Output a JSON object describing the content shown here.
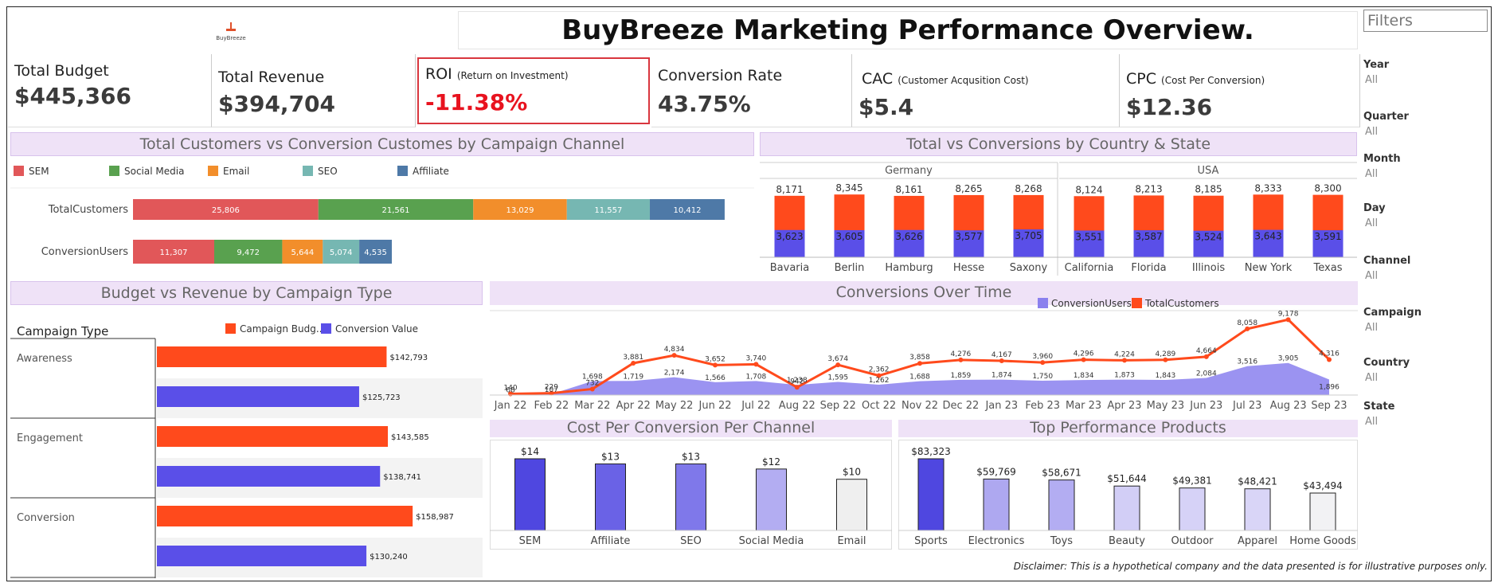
{
  "header": {
    "logo_text": "BuyBreeze",
    "title": "BuyBreeze Marketing Performance Overview."
  },
  "kpis": [
    {
      "label": "Total Budget",
      "sub": "",
      "value": "$445,366"
    },
    {
      "label": "Total Revenue",
      "sub": "",
      "value": "$394,704"
    },
    {
      "label": "ROI",
      "sub": "(Return on Investment)",
      "value": "-11.38%"
    },
    {
      "label": "Conversion Rate",
      "sub": "",
      "value": "43.75%"
    },
    {
      "label": "CAC",
      "sub": "(Customer Acqusition Cost)",
      "value": "$5.4"
    },
    {
      "label": "CPC",
      "sub": "(Cost Per Conversion)",
      "value": "$12.36"
    }
  ],
  "colors": {
    "roi_negative": "#e8131f",
    "title_bg": "#efe2f7",
    "accent_purple": "#d8c2ec"
  },
  "filters": {
    "title": "Filters",
    "items": [
      {
        "label": "Year",
        "value": "All"
      },
      {
        "label": "Quarter",
        "value": "All"
      },
      {
        "label": "Month",
        "value": "All"
      },
      {
        "label": "Day",
        "value": "All"
      },
      {
        "label": "Channel",
        "value": "All"
      },
      {
        "label": "Campaign",
        "value": "All"
      },
      {
        "label": "Country",
        "value": "All"
      },
      {
        "label": "State",
        "value": "All"
      }
    ]
  },
  "disclaimer": "Disclaimer: This is a hypothetical company and the data presented is for illustrative purposes only.",
  "chart_data": [
    {
      "id": "channel",
      "type": "bar",
      "title": "Total Customers vs Conversion Customes by Campaign Channel",
      "orientation": "horizontal-stacked",
      "categories": [
        "TotalCustomers",
        "ConversionUsers"
      ],
      "series": [
        {
          "name": "SEM",
          "color": "#e15759",
          "values": [
            25806,
            11307
          ]
        },
        {
          "name": "Social Media",
          "color": "#59a14f",
          "values": [
            21561,
            9472
          ]
        },
        {
          "name": "Email",
          "color": "#f28e2b",
          "values": [
            13029,
            5644
          ]
        },
        {
          "name": "SEO",
          "color": "#76b7b2",
          "values": [
            11557,
            5074
          ]
        },
        {
          "name": "Affiliate",
          "color": "#4e79a7",
          "values": [
            10412,
            4535
          ]
        }
      ]
    },
    {
      "id": "country",
      "type": "bar",
      "title": "Total vs Conversions by Country & State",
      "orientation": "vertical-overlay",
      "groups": [
        {
          "name": "Germany",
          "categories": [
            "Bavaria",
            "Berlin",
            "Hamburg",
            "Hesse",
            "Saxony"
          ],
          "total": [
            8171,
            8345,
            8161,
            8265,
            8268
          ],
          "conversions": [
            3623,
            3605,
            3626,
            3577,
            3705
          ]
        },
        {
          "name": "USA",
          "categories": [
            "California",
            "Florida",
            "Illinois",
            "New York",
            "Texas"
          ],
          "total": [
            8124,
            8213,
            8185,
            8333,
            8300
          ],
          "conversions": [
            3551,
            3587,
            3524,
            3643,
            3591
          ]
        }
      ],
      "colors": {
        "total": "#ff4a1c",
        "conversions": "#5a4fe8"
      },
      "ylim": [
        0,
        9000
      ]
    },
    {
      "id": "budget",
      "type": "bar",
      "title": "Budget vs Revenue by Campaign Type",
      "orientation": "horizontal",
      "header": "Campaign Type",
      "categories": [
        "Awareness",
        "Engagement",
        "Conversion"
      ],
      "series": [
        {
          "name": "Campaign Budg..",
          "color": "#ff4a1c",
          "values": [
            142793,
            143585,
            158987
          ],
          "labels": [
            "$142,793",
            "$143,585",
            "$158,987"
          ]
        },
        {
          "name": "Conversion Value",
          "color": "#5a4fe8",
          "values": [
            125723,
            138741,
            130240
          ],
          "labels": [
            "$125,723",
            "$138,741",
            "$130,240"
          ]
        }
      ]
    },
    {
      "id": "time",
      "type": "line",
      "title": "Conversions Over Time",
      "x": [
        "Jan 22",
        "Feb 22",
        "Mar 22",
        "Apr 22",
        "May 22",
        "Jun 22",
        "Jul 22",
        "Aug 22",
        "Sep 22",
        "Oct 22",
        "Nov 22",
        "Dec 22",
        "Jan 23",
        "Feb 23",
        "Mar 23",
        "Apr 23",
        "May 23",
        "Jun 23",
        "Jul 23",
        "Aug 23",
        "Sep 23"
      ],
      "series": [
        {
          "name": "ConversionUsers",
          "color": "#8a80ee",
          "values": [
            68,
            107,
            1698,
            1719,
            2174,
            1566,
            1708,
            1238,
            1595,
            1262,
            1688,
            1859,
            1874,
            1750,
            1834,
            1873,
            1843,
            2084,
            3516,
            3905,
            1896
          ]
        },
        {
          "name": "TotalCustomers",
          "color": "#ff4a1c",
          "values": [
            140,
            229,
            732,
            3881,
            4834,
            3652,
            3740,
            942,
            3674,
            2362,
            3858,
            4276,
            4167,
            3960,
            4296,
            4224,
            4289,
            4664,
            8058,
            9178,
            4316
          ]
        }
      ],
      "ylim": [
        0,
        9500
      ]
    },
    {
      "id": "cpc",
      "type": "bar",
      "title": "Cost Per Conversion Per Channel",
      "categories": [
        "SEM",
        "Affiliate",
        "SEO",
        "Social Media",
        "Email"
      ],
      "values": [
        14,
        13,
        13,
        12,
        10
      ],
      "labels": [
        "$14",
        "$13",
        "$13",
        "$12",
        "$10"
      ],
      "colors": [
        "#4f47e0",
        "#6a62e6",
        "#7f78ea",
        "#b3adf2",
        "#efefef"
      ]
    },
    {
      "id": "products",
      "type": "bar",
      "title": "Top Performance Products",
      "categories": [
        "Sports",
        "Electronics",
        "Toys",
        "Beauty",
        "Outdoor",
        "Apparel",
        "Home Goods"
      ],
      "values": [
        83323,
        59769,
        58671,
        51644,
        49381,
        48421,
        43494
      ],
      "labels": [
        "$83,323",
        "$59,769",
        "$58,671",
        "$51,644",
        "$49,381",
        "$48,421",
        "$43,494"
      ],
      "colors": [
        "#4f47e0",
        "#aea8f0",
        "#b3adf2",
        "#d2cef6",
        "#d6d2f7",
        "#d9d5f7",
        "#f2f2f4"
      ]
    }
  ]
}
